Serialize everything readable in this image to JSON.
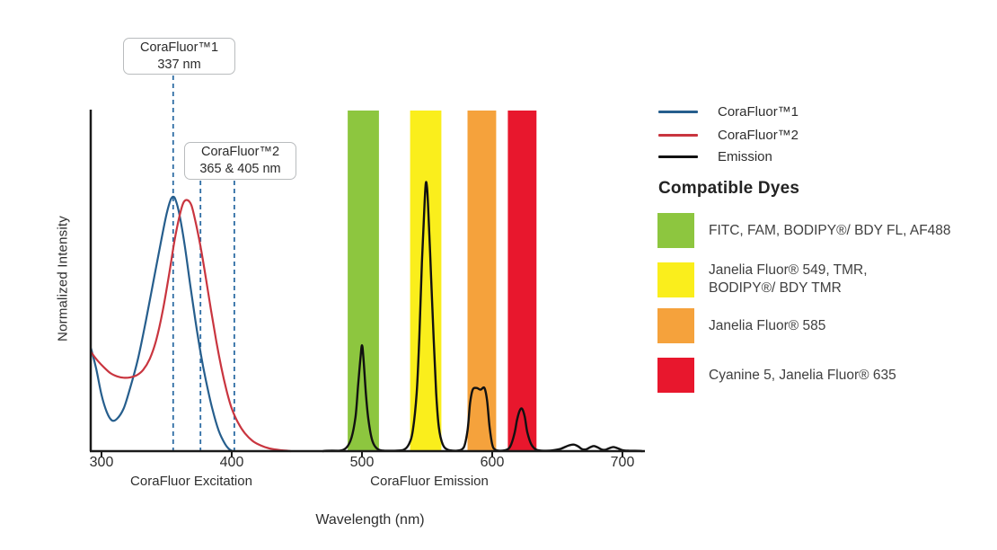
{
  "chart": {
    "y_axis_label": "Normalized Intensity",
    "x_axis_title": "Wavelength (nm)",
    "x_region_labels": [
      {
        "label": "CoraFluor Excitation"
      },
      {
        "label": "CoraFluor Emission"
      }
    ]
  },
  "callouts": [
    {
      "line1": "CoraFluor™1",
      "line2": "337 nm"
    },
    {
      "line1": "CoraFluor™2",
      "line2": "365 & 405 nm"
    }
  ],
  "legend": {
    "items": [
      {
        "label": "CoraFluor™1",
        "color": "#265E8D"
      },
      {
        "label": "CoraFluor™2",
        "color": "#C9353F"
      },
      {
        "label": "Emission",
        "color": "#111111"
      }
    ]
  },
  "compatible_dyes": {
    "heading": "Compatible Dyes",
    "items": [
      {
        "color": "#8DC63F",
        "lines": [
          "FITC, FAM, BODIPY®/ BDY FL, AF488"
        ]
      },
      {
        "color": "#FAEE1C",
        "lines": [
          "Janelia Fluor® 549, TMR,",
          "BODIPY®/ BDY TMR"
        ]
      },
      {
        "color": "#F5A23C",
        "lines": [
          "Janelia Fluor® 585"
        ]
      },
      {
        "color": "#E8172D",
        "lines": [
          "Cyanine 5, Janelia Fluor® 635"
        ]
      }
    ]
  },
  "chart_data": {
    "type": "line",
    "title": "CoraFluor excitation and emission spectra with compatible dye windows",
    "xlabel": "Wavelength (nm)",
    "ylabel": "Normalized Intensity",
    "xlim": [
      292,
      717
    ],
    "ylim": [
      0,
      1
    ],
    "grid": false,
    "legend_position": "right",
    "x_ticks": [
      300,
      400,
      500,
      600,
      700
    ],
    "guide_lines": {
      "color": "#2E6DA4",
      "nm": [
        355,
        376,
        402
      ],
      "labels_refer_to": "337 nm, 365 nm, 405 nm excitation"
    },
    "bands": [
      {
        "name": "FITC, FAM, BODIPY/ BDY FL, AF488 window",
        "color": "#8DC63F",
        "from_nm": 489,
        "to_nm": 513
      },
      {
        "name": "Janelia Fluor 549, TMR, BODIPY/ BDY TMR window",
        "color": "#FAEE1C",
        "from_nm": 537,
        "to_nm": 561
      },
      {
        "name": "Janelia Fluor 585 window",
        "color": "#F5A23C",
        "from_nm": 581,
        "to_nm": 603
      },
      {
        "name": "Cyanine 5, Janelia Fluor 635 window",
        "color": "#E8172D",
        "from_nm": 612,
        "to_nm": 634
      }
    ],
    "series": [
      {
        "name": "CoraFluor™1",
        "color": "#265E8D",
        "x": [
          292,
          296,
          300,
          304,
          308,
          312,
          317,
          322,
          328,
          334,
          340,
          346,
          350,
          353,
          355,
          357,
          360,
          364,
          368,
          372,
          376,
          380,
          385,
          390,
          395,
          398,
          400,
          401
        ],
        "y": [
          0.3,
          0.24,
          0.165,
          0.115,
          0.09,
          0.095,
          0.125,
          0.185,
          0.27,
          0.38,
          0.5,
          0.62,
          0.695,
          0.735,
          0.745,
          0.735,
          0.69,
          0.6,
          0.49,
          0.385,
          0.29,
          0.21,
          0.125,
          0.06,
          0.02,
          0.006,
          0.001,
          0
        ]
      },
      {
        "name": "CoraFluor™2",
        "color": "#C9353F",
        "x": [
          292,
          297,
          302,
          307,
          312,
          317,
          322,
          327,
          332,
          337,
          342,
          347,
          352,
          356,
          360,
          363,
          366,
          369,
          372,
          376,
          380,
          384,
          388,
          392,
          396,
          400,
          405,
          410,
          416,
          422,
          429,
          437,
          445
        ],
        "y": [
          0.29,
          0.265,
          0.245,
          0.228,
          0.219,
          0.215,
          0.216,
          0.222,
          0.238,
          0.27,
          0.325,
          0.41,
          0.52,
          0.615,
          0.69,
          0.728,
          0.735,
          0.72,
          0.675,
          0.6,
          0.51,
          0.415,
          0.325,
          0.245,
          0.178,
          0.125,
          0.082,
          0.053,
          0.03,
          0.017,
          0.008,
          0.003,
          0
        ]
      },
      {
        "name": "Emission",
        "color": "#111111",
        "x": [
          470,
          482,
          488,
          492,
          495,
          497,
          499,
          500,
          501,
          503,
          505,
          508,
          512,
          518,
          525,
          532,
          536,
          539,
          542,
          544,
          546,
          548,
          549,
          550,
          551,
          553,
          555,
          557,
          559,
          562,
          566,
          572,
          578,
          581,
          583,
          585,
          588,
          591,
          594,
          596,
          598,
          600,
          602,
          606,
          611,
          614,
          617,
          619,
          621,
          623,
          625,
          627,
          630,
          634,
          640,
          646,
          652,
          657,
          660,
          663,
          666,
          669,
          672,
          675,
          678,
          681,
          684,
          687,
          690,
          693,
          696,
          700,
          706,
          715
        ],
        "y": [
          0,
          0.001,
          0.01,
          0.04,
          0.1,
          0.19,
          0.28,
          0.31,
          0.28,
          0.17,
          0.09,
          0.03,
          0.006,
          0.001,
          0.001,
          0.004,
          0.02,
          0.06,
          0.17,
          0.33,
          0.55,
          0.72,
          0.785,
          0.77,
          0.7,
          0.52,
          0.33,
          0.17,
          0.07,
          0.02,
          0.004,
          0.001,
          0.01,
          0.06,
          0.14,
          0.18,
          0.185,
          0.18,
          0.185,
          0.15,
          0.07,
          0.02,
          0.005,
          0.001,
          0.004,
          0.015,
          0.05,
          0.09,
          0.118,
          0.124,
          0.1,
          0.055,
          0.02,
          0.004,
          0.001,
          0.002,
          0.006,
          0.014,
          0.018,
          0.019,
          0.014,
          0.006,
          0.005,
          0.011,
          0.015,
          0.011,
          0.005,
          0.004,
          0.009,
          0.012,
          0.009,
          0.003,
          0.001,
          0
        ]
      }
    ],
    "emission_peaks_nm": [
      500,
      549,
      589,
      623
    ],
    "emission_peak_intensities": [
      0.31,
      0.785,
      0.185,
      0.124
    ]
  }
}
